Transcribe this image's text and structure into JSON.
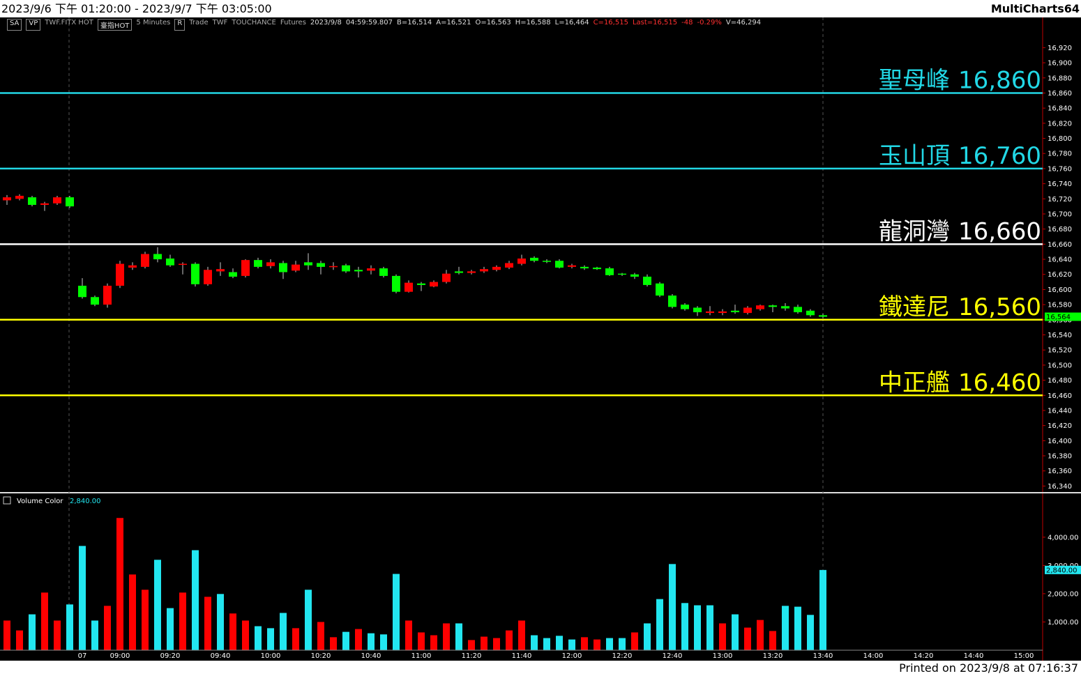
{
  "header": {
    "range": "2023/9/6 下午 01:20:00 - 2023/9/7 下午 03:05:00",
    "app": "MultiCharts64"
  },
  "toolbar": [
    "SA",
    "VP",
    "TWF.FITX HOT",
    "臺指HOT",
    "5 Minutes",
    "R",
    "Trade",
    "TWF",
    "TOUCHANCE",
    "Futures",
    "2023/9/8",
    "04:59:59.807",
    "B=16,514",
    "A=16,521",
    "O=16,563",
    "H=16,588",
    "L=16,464",
    "C=16,515",
    "Last=16,515",
    "-48",
    "-0.29%",
    "V=46,294"
  ],
  "footer": "Printed on 2023/9/8 at 07:16:37",
  "chart_data": [
    {
      "type": "candlestick",
      "up_color": "#ff0000",
      "down_color": "#00ff00",
      "categories": [
        null,
        null,
        null,
        null,
        null,
        null,
        "07",
        null,
        null,
        "09:00",
        null,
        null,
        null,
        "09:20",
        null,
        null,
        null,
        "09:40",
        null,
        null,
        null,
        "10:00",
        null,
        null,
        null,
        "10:20",
        null,
        null,
        null,
        "10:40",
        null,
        null,
        null,
        "11:00",
        null,
        null,
        null,
        "11:20",
        null,
        null,
        null,
        "11:40",
        null,
        null,
        null,
        "12:00",
        null,
        null,
        null,
        "12:20",
        null,
        null,
        null,
        "12:40",
        null,
        null,
        null,
        "13:00",
        null,
        null,
        null,
        "13:20",
        null,
        null,
        null,
        "13:40",
        null,
        null,
        null,
        "14:00",
        null,
        null,
        null,
        "14:20",
        null,
        null,
        null,
        "14:40",
        null,
        null,
        null,
        "15:00",
        null
      ],
      "open": [
        16718,
        16720,
        16722,
        16712,
        16714,
        16722,
        16605,
        16590,
        16580,
        16605,
        16629,
        16630,
        16647,
        16641,
        16634,
        16634,
        16607,
        16624,
        16623,
        16618,
        16639,
        16631,
        16635,
        16625,
        16636,
        16635,
        16630,
        16632,
        16626,
        16625,
        16628,
        16618,
        16597,
        16608,
        16604,
        16610,
        16624,
        16622,
        16624,
        16626,
        16629,
        16634,
        16642,
        16638,
        16638,
        16630,
        16630,
        16629,
        16628,
        16621,
        16620,
        16617,
        16608,
        16592,
        16580,
        16576,
        16569,
        16569,
        16572,
        16569,
        16574,
        16579,
        16578,
        16577,
        16572,
        16566,
        null,
        null,
        null,
        null,
        null,
        null,
        null,
        null,
        null,
        null,
        null,
        null,
        null,
        null,
        null,
        null,
        null
      ],
      "high": [
        16725,
        16726,
        16724,
        16716,
        16724,
        16724,
        16615,
        16592,
        16608,
        16638,
        16636,
        16650,
        16656,
        16646,
        16636,
        16636,
        16630,
        16636,
        16628,
        16640,
        16642,
        16640,
        16638,
        16638,
        16648,
        16638,
        16636,
        16634,
        16630,
        16632,
        16630,
        16620,
        16612,
        16610,
        16612,
        16626,
        16630,
        16626,
        16630,
        16632,
        16638,
        16646,
        16644,
        16640,
        16640,
        16634,
        16632,
        16630,
        16630,
        16622,
        16622,
        16620,
        16610,
        16594,
        16582,
        16578,
        16578,
        16574,
        16580,
        16578,
        16580,
        16580,
        16582,
        16580,
        16574,
        16568,
        null,
        null,
        null,
        null,
        null,
        null,
        null,
        null,
        null,
        null,
        null,
        null,
        null,
        null,
        null,
        null,
        null
      ],
      "low": [
        16712,
        16718,
        16710,
        16704,
        16712,
        16708,
        16588,
        16578,
        16576,
        16602,
        16626,
        16628,
        16636,
        16630,
        16620,
        16604,
        16605,
        16618,
        16615,
        16616,
        16628,
        16628,
        16614,
        16623,
        16626,
        16620,
        16626,
        16622,
        16616,
        16620,
        16616,
        16595,
        16596,
        16598,
        16603,
        16608,
        16620,
        16620,
        16622,
        16624,
        16627,
        16632,
        16636,
        16635,
        16628,
        16628,
        16626,
        16626,
        16618,
        16618,
        16614,
        16604,
        16590,
        16575,
        16572,
        16565,
        16566,
        16566,
        16568,
        16567,
        16572,
        16570,
        16572,
        16568,
        16564,
        16562,
        null,
        null,
        null,
        null,
        null,
        null,
        null,
        null,
        null,
        null,
        null,
        null,
        null,
        null,
        null,
        null,
        null
      ],
      "close": [
        16722,
        16724,
        16712,
        16714,
        16722,
        16710,
        16590,
        16580,
        16605,
        16634,
        16632,
        16647,
        16640,
        16632,
        16634,
        16607,
        16626,
        16627,
        16617,
        16639,
        16630,
        16636,
        16623,
        16633,
        16632,
        16630,
        16631,
        16624,
        16624,
        16628,
        16618,
        16597,
        16609,
        16606,
        16610,
        16621,
        16622,
        16624,
        16627,
        16630,
        16635,
        16641,
        16638,
        16637,
        16629,
        16632,
        16628,
        16627,
        16619,
        16620,
        16617,
        16606,
        16592,
        16577,
        16574,
        16570,
        16571,
        16571,
        16570,
        16576,
        16579,
        16577,
        16575,
        16570,
        16566,
        16564,
        null,
        null,
        null,
        null,
        null,
        null,
        null,
        null,
        null,
        null,
        null,
        null,
        null,
        null,
        null,
        null,
        null
      ],
      "ylim": [
        16333,
        16960
      ],
      "yticks": [
        {
          "value": 16340,
          "label": "16,340"
        },
        {
          "value": 16360,
          "label": "16,360"
        },
        {
          "value": 16380,
          "label": "16,380"
        },
        {
          "value": 16400,
          "label": "16,400"
        },
        {
          "value": 16420,
          "label": "16,420"
        },
        {
          "value": 16440,
          "label": "16,440"
        },
        {
          "value": 16460,
          "label": "16,460"
        },
        {
          "value": 16480,
          "label": "16,480"
        },
        {
          "value": 16500,
          "label": "16,500"
        },
        {
          "value": 16520,
          "label": "16,520"
        },
        {
          "value": 16540,
          "label": "16,540"
        },
        {
          "value": 16560,
          "label": "16,560"
        },
        {
          "value": 16580,
          "label": "16,580"
        },
        {
          "value": 16600,
          "label": "16,600"
        },
        {
          "value": 16620,
          "label": "16,620"
        },
        {
          "value": 16640,
          "label": "16,640"
        },
        {
          "value": 16660,
          "label": "16,660"
        },
        {
          "value": 16680,
          "label": "16,680"
        },
        {
          "value": 16700,
          "label": "16,700"
        },
        {
          "value": 16720,
          "label": "16,720"
        },
        {
          "value": 16740,
          "label": "16,740"
        },
        {
          "value": 16760,
          "label": "16,760"
        },
        {
          "value": 16780,
          "label": "16,780"
        },
        {
          "value": 16800,
          "label": "16,800"
        },
        {
          "value": 16820,
          "label": "16,820"
        },
        {
          "value": 16840,
          "label": "16,840"
        },
        {
          "value": 16860,
          "label": "16,860"
        },
        {
          "value": 16880,
          "label": "16,880"
        },
        {
          "value": 16900,
          "label": "16,900"
        },
        {
          "value": 16920,
          "label": "16,920"
        }
      ],
      "levels": [
        {
          "name": "聖母峰",
          "value": 16860,
          "label": "16,860",
          "color": "#22d8e6"
        },
        {
          "name": "玉山頂",
          "value": 16760,
          "label": "16,760",
          "color": "#22d8e6"
        },
        {
          "name": "龍洞灣",
          "value": 16660,
          "label": "16,660",
          "color": "#ffffff"
        },
        {
          "name": "鐵達尼",
          "value": 16560,
          "label": "16,560",
          "color": "#ffff00"
        },
        {
          "name": "中正艦",
          "value": 16460,
          "label": "16,460",
          "color": "#ffff00"
        }
      ],
      "last": {
        "value": 16564,
        "label": "16,564"
      }
    },
    {
      "type": "bar",
      "title": "Volume Color",
      "values": [
        1050,
        700,
        1270,
        2040,
        1050,
        1620,
        3690,
        1050,
        1570,
        4680,
        2680,
        2140,
        3200,
        1490,
        2040,
        3540,
        1890,
        1990,
        1300,
        1050,
        850,
        780,
        1320,
        780,
        2140,
        1000,
        460,
        650,
        750,
        600,
        560,
        2700,
        1050,
        630,
        530,
        950,
        950,
        360,
        480,
        430,
        700,
        1050,
        530,
        430,
        510,
        380,
        460,
        380,
        430,
        430,
        630,
        950,
        1810,
        3050,
        1670,
        1590,
        1590,
        950,
        1270,
        800,
        1070,
        680,
        1570,
        1540,
        1250,
        2840,
        null,
        null,
        null,
        null,
        null,
        null,
        null,
        null,
        null,
        null,
        null,
        null,
        null,
        null,
        null,
        null,
        null
      ],
      "colors": [
        "#ff0000",
        "#ff0000",
        "#22e6f0",
        "#ff0000",
        "#ff0000",
        "#22e6f0",
        "#22e6f0",
        "#22e6f0",
        "#ff0000",
        "#ff0000",
        "#ff0000",
        "#ff0000",
        "#22e6f0",
        "#22e6f0",
        "#ff0000",
        "#22e6f0",
        "#ff0000",
        "#22e6f0",
        "#ff0000",
        "#ff0000",
        "#22e6f0",
        "#22e6f0",
        "#22e6f0",
        "#ff0000",
        "#22e6f0",
        "#ff0000",
        "#ff0000",
        "#22e6f0",
        "#ff0000",
        "#22e6f0",
        "#22e6f0",
        "#22e6f0",
        "#ff0000",
        "#ff0000",
        "#ff0000",
        "#ff0000",
        "#22e6f0",
        "#ff0000",
        "#ff0000",
        "#ff0000",
        "#ff0000",
        "#ff0000",
        "#22e6f0",
        "#22e6f0",
        "#22e6f0",
        "#22e6f0",
        "#ff0000",
        "#ff0000",
        "#22e6f0",
        "#22e6f0",
        "#ff0000",
        "#22e6f0",
        "#22e6f0",
        "#22e6f0",
        "#22e6f0",
        "#22e6f0",
        "#22e6f0",
        "#ff0000",
        "#22e6f0",
        "#ff0000",
        "#ff0000",
        "#ff0000",
        "#22e6f0",
        "#22e6f0",
        "#22e6f0",
        "#22e6f0",
        null,
        null,
        null,
        null,
        null,
        null,
        null,
        null,
        null,
        null,
        null,
        null,
        null,
        null,
        null,
        null,
        null
      ],
      "ylim": [
        0,
        5500
      ],
      "yticks": [
        {
          "value": 1000,
          "label": "1,000.00"
        },
        {
          "value": 2000,
          "label": "2,000.00"
        },
        {
          "value": 3000,
          "label": "3,000.00"
        },
        {
          "value": 4000,
          "label": "4,000.00"
        }
      ],
      "last": {
        "value": 2840,
        "label": "2,840.00"
      }
    }
  ]
}
